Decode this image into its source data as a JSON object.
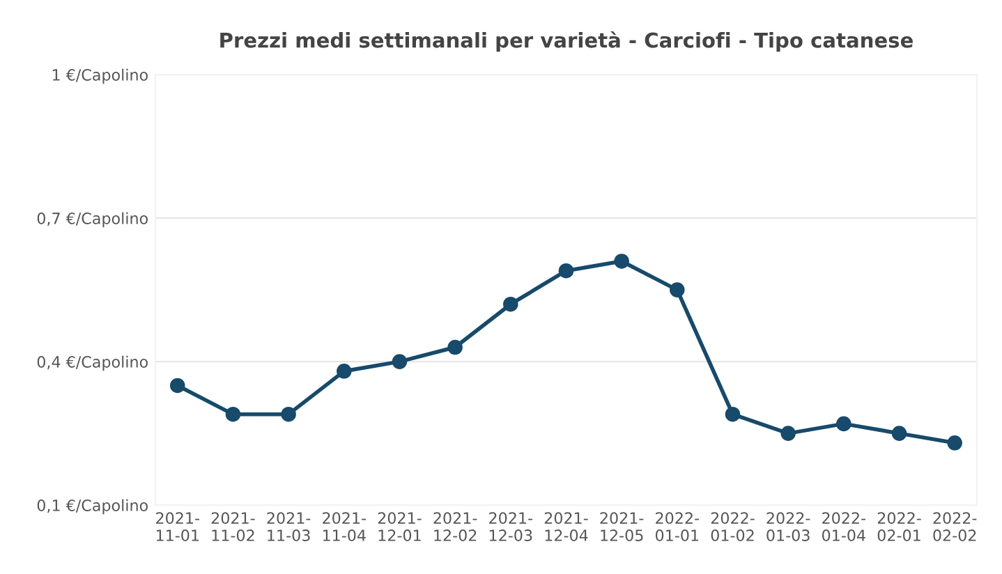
{
  "chart_data": {
    "type": "line",
    "title": "Prezzi medi settimanali per varietà - Carciofi - Tipo catanese",
    "categories": [
      "2021-11-01",
      "2021-11-02",
      "2021-11-03",
      "2021-11-04",
      "2021-12-01",
      "2021-12-02",
      "2021-12-03",
      "2021-12-04",
      "2021-12-05",
      "2022-01-01",
      "2022-01-02",
      "2022-01-03",
      "2022-01-04",
      "2022-02-01",
      "2022-02-02"
    ],
    "series": [
      {
        "color": "#174a6b",
        "values": [
          0.35,
          0.29,
          0.29,
          0.38,
          0.4,
          0.43,
          0.52,
          0.59,
          0.61,
          0.55,
          0.29,
          0.25,
          0.27,
          0.25,
          0.23
        ]
      }
    ],
    "ylim": [
      0.1,
      1.0
    ],
    "yticks": [
      {
        "value": 0.1,
        "label": "0,1 €/Capolino"
      },
      {
        "value": 0.4,
        "label": "0,4 €/Capolino"
      },
      {
        "value": 0.7,
        "label": "0,7 €/Capolino"
      },
      {
        "value": 1.0,
        "label": "1 €/Capolino"
      }
    ],
    "grid": "y",
    "marker": "circle",
    "line_style": "solid"
  }
}
